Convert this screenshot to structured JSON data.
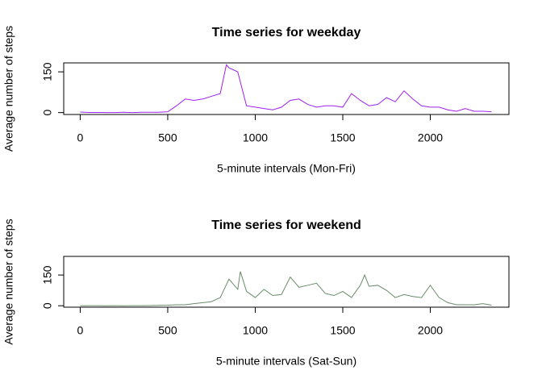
{
  "chart_data": [
    {
      "type": "line",
      "title": "Time series for weekday",
      "xlabel": "5-minute intervals (Mon-Fri)",
      "ylabel": "Average number of steps",
      "color": "#a020f0",
      "x": [
        0,
        50,
        100,
        150,
        200,
        250,
        300,
        350,
        400,
        450,
        500,
        550,
        600,
        650,
        700,
        750,
        800,
        835,
        850,
        900,
        950,
        1000,
        1050,
        1100,
        1150,
        1200,
        1250,
        1300,
        1350,
        1400,
        1450,
        1500,
        1550,
        1600,
        1650,
        1700,
        1750,
        1800,
        1850,
        1900,
        1950,
        2000,
        2050,
        2100,
        2150,
        2200,
        2250,
        2300,
        2350
      ],
      "values": [
        2,
        0.5,
        0.3,
        0.2,
        0,
        1,
        0.2,
        1,
        1,
        1,
        3,
        25,
        50,
        45,
        50,
        60,
        70,
        176,
        165,
        150,
        25,
        20,
        15,
        10,
        20,
        45,
        50,
        30,
        20,
        25,
        25,
        20,
        70,
        45,
        25,
        30,
        55,
        40,
        80,
        50,
        25,
        20,
        20,
        10,
        5,
        15,
        5,
        5,
        3
      ],
      "xlim": [
        -94.2,
        2449.2
      ],
      "ylim": [
        -7,
        183
      ],
      "xticks": [
        0,
        500,
        1000,
        1500,
        2000
      ],
      "yticks": [
        0,
        150
      ]
    },
    {
      "type": "line",
      "title": "Time series for weekend",
      "xlabel": "5-minute intervals (Sat-Sun)",
      "ylabel": "Average number of steps",
      "color": "#698b69",
      "x": [
        0,
        50,
        100,
        150,
        200,
        250,
        300,
        350,
        400,
        450,
        500,
        550,
        600,
        650,
        700,
        750,
        800,
        850,
        900,
        915,
        950,
        1000,
        1050,
        1100,
        1150,
        1200,
        1250,
        1300,
        1350,
        1400,
        1450,
        1500,
        1550,
        1600,
        1625,
        1650,
        1700,
        1750,
        1800,
        1850,
        1900,
        1950,
        2000,
        2050,
        2100,
        2150,
        2200,
        2250,
        2300,
        2350
      ],
      "values": [
        0,
        0.5,
        0.2,
        0,
        0.3,
        0,
        0.5,
        0.3,
        1,
        2,
        3,
        5,
        5,
        10,
        15,
        20,
        40,
        130,
        80,
        167,
        70,
        40,
        80,
        50,
        55,
        140,
        90,
        100,
        110,
        60,
        50,
        70,
        40,
        100,
        150,
        95,
        100,
        75,
        40,
        55,
        45,
        40,
        100,
        40,
        15,
        5,
        5,
        5,
        10,
        3
      ],
      "xlim": [
        -94.2,
        2449.2
      ],
      "ylim": [
        -7,
        241
      ],
      "xticks": [
        0,
        500,
        1000,
        1500,
        2000
      ],
      "yticks": [
        0,
        150
      ]
    }
  ]
}
